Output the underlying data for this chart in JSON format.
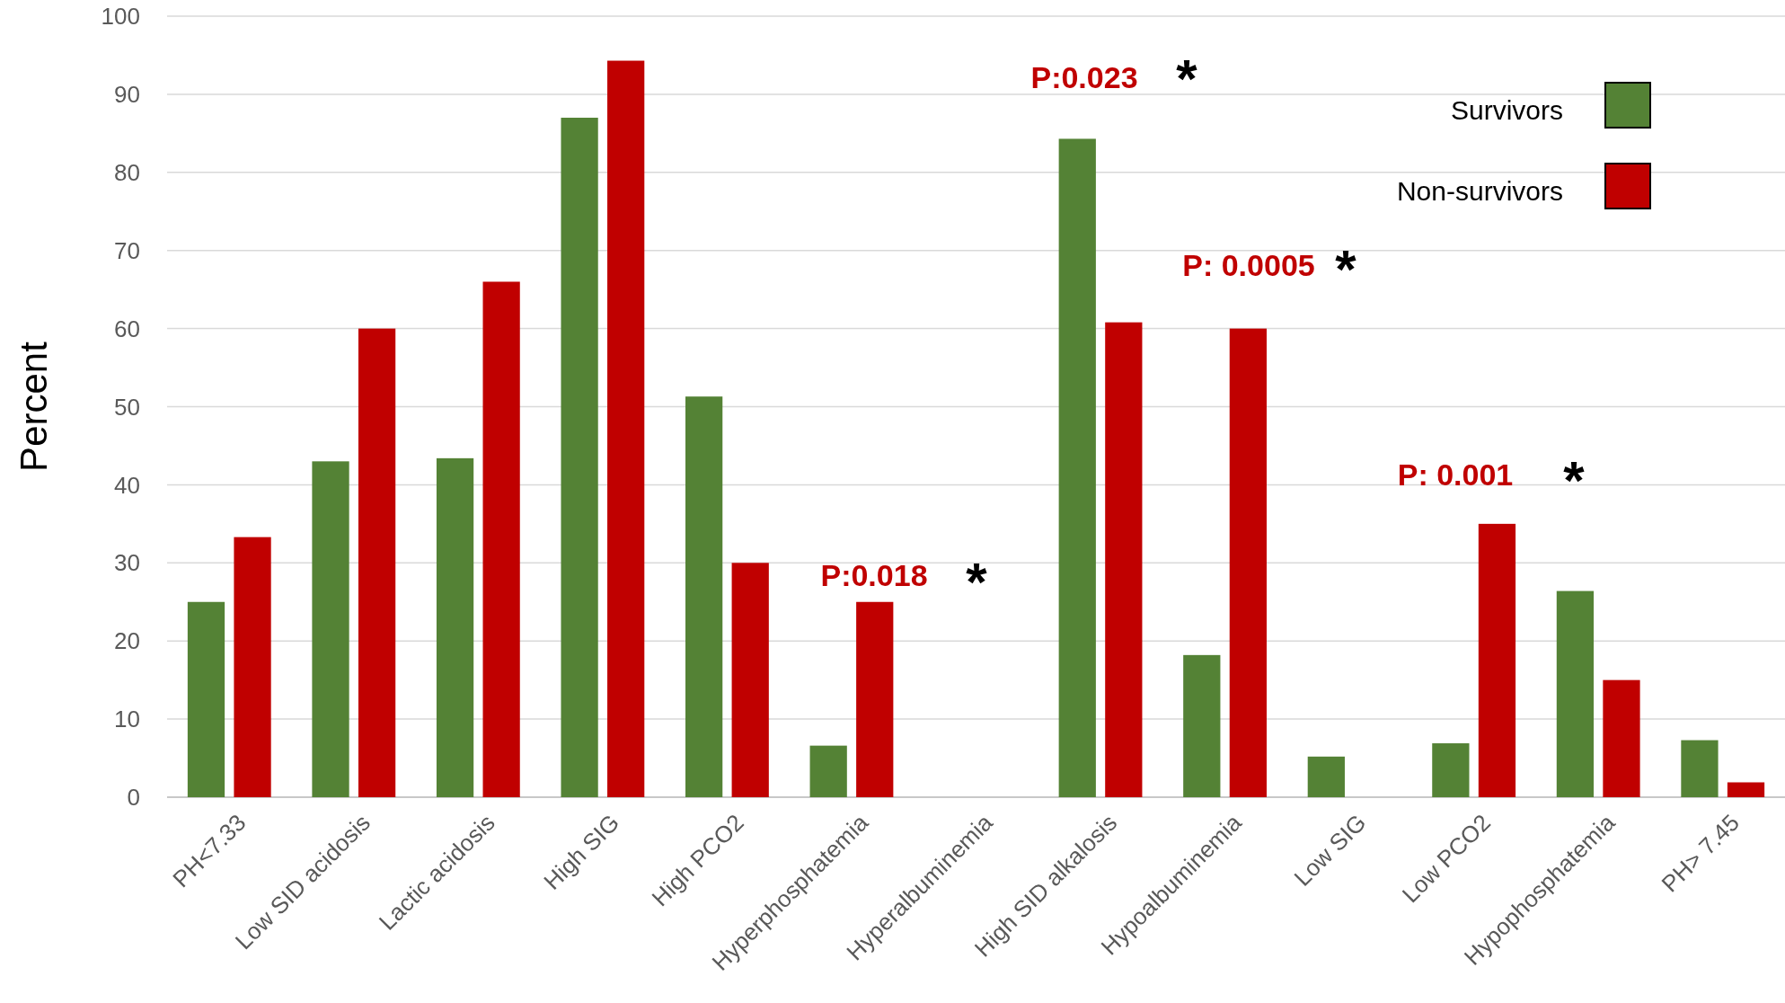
{
  "chart_data": {
    "type": "bar",
    "ylabel": "Percent",
    "categories": [
      "PH<7.33",
      "Low SID acidosis",
      "Lactic acidosis",
      "High SIG",
      "High PCO2",
      "Hyperphosphatemia",
      "Hyperalbuminemia",
      "High SID alkalosis",
      "Hypoalbuminemia",
      "Low SIG",
      "Low PCO2",
      "Hypophosphatemia",
      "PH> 7.45"
    ],
    "series": [
      {
        "name": "Survivors",
        "color": "#548235",
        "values": [
          25,
          43,
          43.4,
          87,
          51.3,
          6.6,
          0,
          84.3,
          18.2,
          5.2,
          6.9,
          26.4,
          7.3
        ]
      },
      {
        "name": "Non-survivors",
        "color": "#c00000",
        "values": [
          33.3,
          60,
          66,
          94.3,
          30,
          25,
          0,
          60.8,
          60,
          0,
          35,
          15,
          1.9
        ]
      }
    ],
    "ylim": [
      0,
      100
    ],
    "yticks": [
      0,
      10,
      20,
      30,
      40,
      50,
      60,
      70,
      80,
      90,
      100
    ],
    "grid": "y",
    "legend": "top right",
    "annotations": [
      "P:0.018",
      "*",
      "P:0.023",
      "*",
      "P: 0.0005",
      "*",
      "P: 0.001",
      "*"
    ]
  }
}
